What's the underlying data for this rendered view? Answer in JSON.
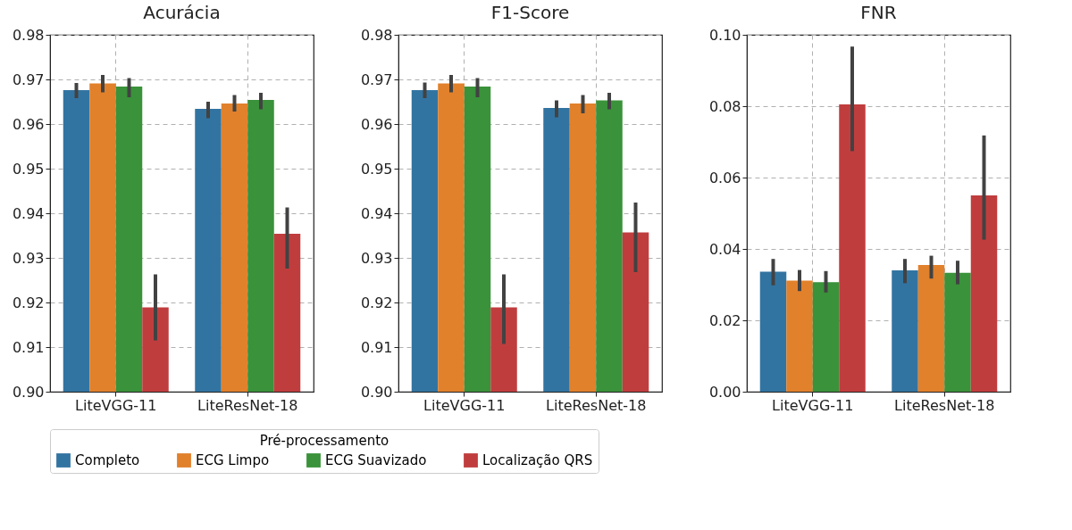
{
  "chart_data": [
    {
      "type": "bar",
      "title": "Acurácia",
      "categories": [
        "LiteVGG-11",
        "LiteResNet-18"
      ],
      "legend_title": "Pré-processamento",
      "legend": "bottom",
      "grid": true,
      "ylim": [
        0.9,
        0.98
      ],
      "yticks": [
        {
          "value": 0.9,
          "label": "0.90"
        },
        0.91,
        0.92,
        0.93,
        0.94,
        0.95,
        0.96,
        0.97,
        0.98
      ],
      "series": [
        {
          "name": "Completo",
          "color": "#3274a1",
          "values": [
            0.9676,
            0.9634
          ],
          "errors": [
            [
              0.9658,
              0.9692
            ],
            [
              0.9613,
              0.965
            ]
          ]
        },
        {
          "name": "ECG Limpo",
          "color": "#e1812c",
          "values": [
            0.9691,
            0.9646
          ],
          "errors": [
            [
              0.9671,
              0.971
            ],
            [
              0.9628,
              0.9665
            ]
          ]
        },
        {
          "name": "ECG Suavizado",
          "color": "#3a923a",
          "values": [
            0.9684,
            0.9654
          ],
          "errors": [
            [
              0.966,
              0.9703
            ],
            [
              0.9633,
              0.967
            ]
          ]
        },
        {
          "name": "Localização QRS",
          "color": "#c03d3e",
          "values": [
            0.9189,
            0.9354
          ],
          "errors": [
            [
              0.9115,
              0.9263
            ],
            [
              0.9276,
              0.9413
            ]
          ]
        }
      ]
    },
    {
      "type": "bar",
      "title": "F1-Score",
      "categories": [
        "LiteVGG-11",
        "LiteResNet-18"
      ],
      "grid": true,
      "ylim": [
        0.9,
        0.98
      ],
      "yticks": [
        {
          "value": 0.9,
          "label": "0.90"
        },
        0.91,
        0.92,
        0.93,
        0.94,
        0.95,
        0.96,
        0.97,
        0.98
      ],
      "series": [
        {
          "name": "Completo",
          "color": "#3274a1",
          "values": [
            0.9676,
            0.9636
          ],
          "errors": [
            [
              0.9658,
              0.9693
            ],
            [
              0.9615,
              0.9653
            ]
          ]
        },
        {
          "name": "ECG Limpo",
          "color": "#e1812c",
          "values": [
            0.9691,
            0.9646
          ],
          "errors": [
            [
              0.9671,
              0.971
            ],
            [
              0.9624,
              0.9665
            ]
          ]
        },
        {
          "name": "ECG Suavizado",
          "color": "#3a923a",
          "values": [
            0.9684,
            0.9653
          ],
          "errors": [
            [
              0.966,
              0.9703
            ],
            [
              0.9633,
              0.967
            ]
          ]
        },
        {
          "name": "Localização QRS",
          "color": "#c03d3e",
          "values": [
            0.9189,
            0.9357
          ],
          "errors": [
            [
              0.9107,
              0.9263
            ],
            [
              0.9268,
              0.9424
            ]
          ]
        }
      ]
    },
    {
      "type": "bar",
      "title": "FNR",
      "categories": [
        "LiteVGG-11",
        "LiteResNet-18"
      ],
      "grid": true,
      "ylim": [
        0,
        0.1
      ],
      "yticks": [
        {
          "value": 0,
          "label": "0.00"
        },
        0.02,
        0.04,
        0.06,
        0.08,
        {
          "value": 0.1,
          "label": "0.10"
        }
      ],
      "series": [
        {
          "name": "Completo",
          "color": "#3274a1",
          "values": [
            0.0336,
            0.034
          ],
          "errors": [
            [
              0.0298,
              0.0372
            ],
            [
              0.0304,
              0.0372
            ]
          ]
        },
        {
          "name": "ECG Limpo",
          "color": "#e1812c",
          "values": [
            0.0311,
            0.0355
          ],
          "errors": [
            [
              0.0282,
              0.0341
            ],
            [
              0.0317,
              0.0381
            ]
          ]
        },
        {
          "name": "ECG Suavizado",
          "color": "#3a923a",
          "values": [
            0.0307,
            0.0333
          ],
          "errors": [
            [
              0.0278,
              0.0338
            ],
            [
              0.0301,
              0.0367
            ]
          ]
        },
        {
          "name": "Localização QRS",
          "color": "#c03d3e",
          "values": [
            0.0805,
            0.055
          ],
          "errors": [
            [
              0.0674,
              0.0967
            ],
            [
              0.0426,
              0.0718
            ]
          ]
        }
      ]
    }
  ]
}
